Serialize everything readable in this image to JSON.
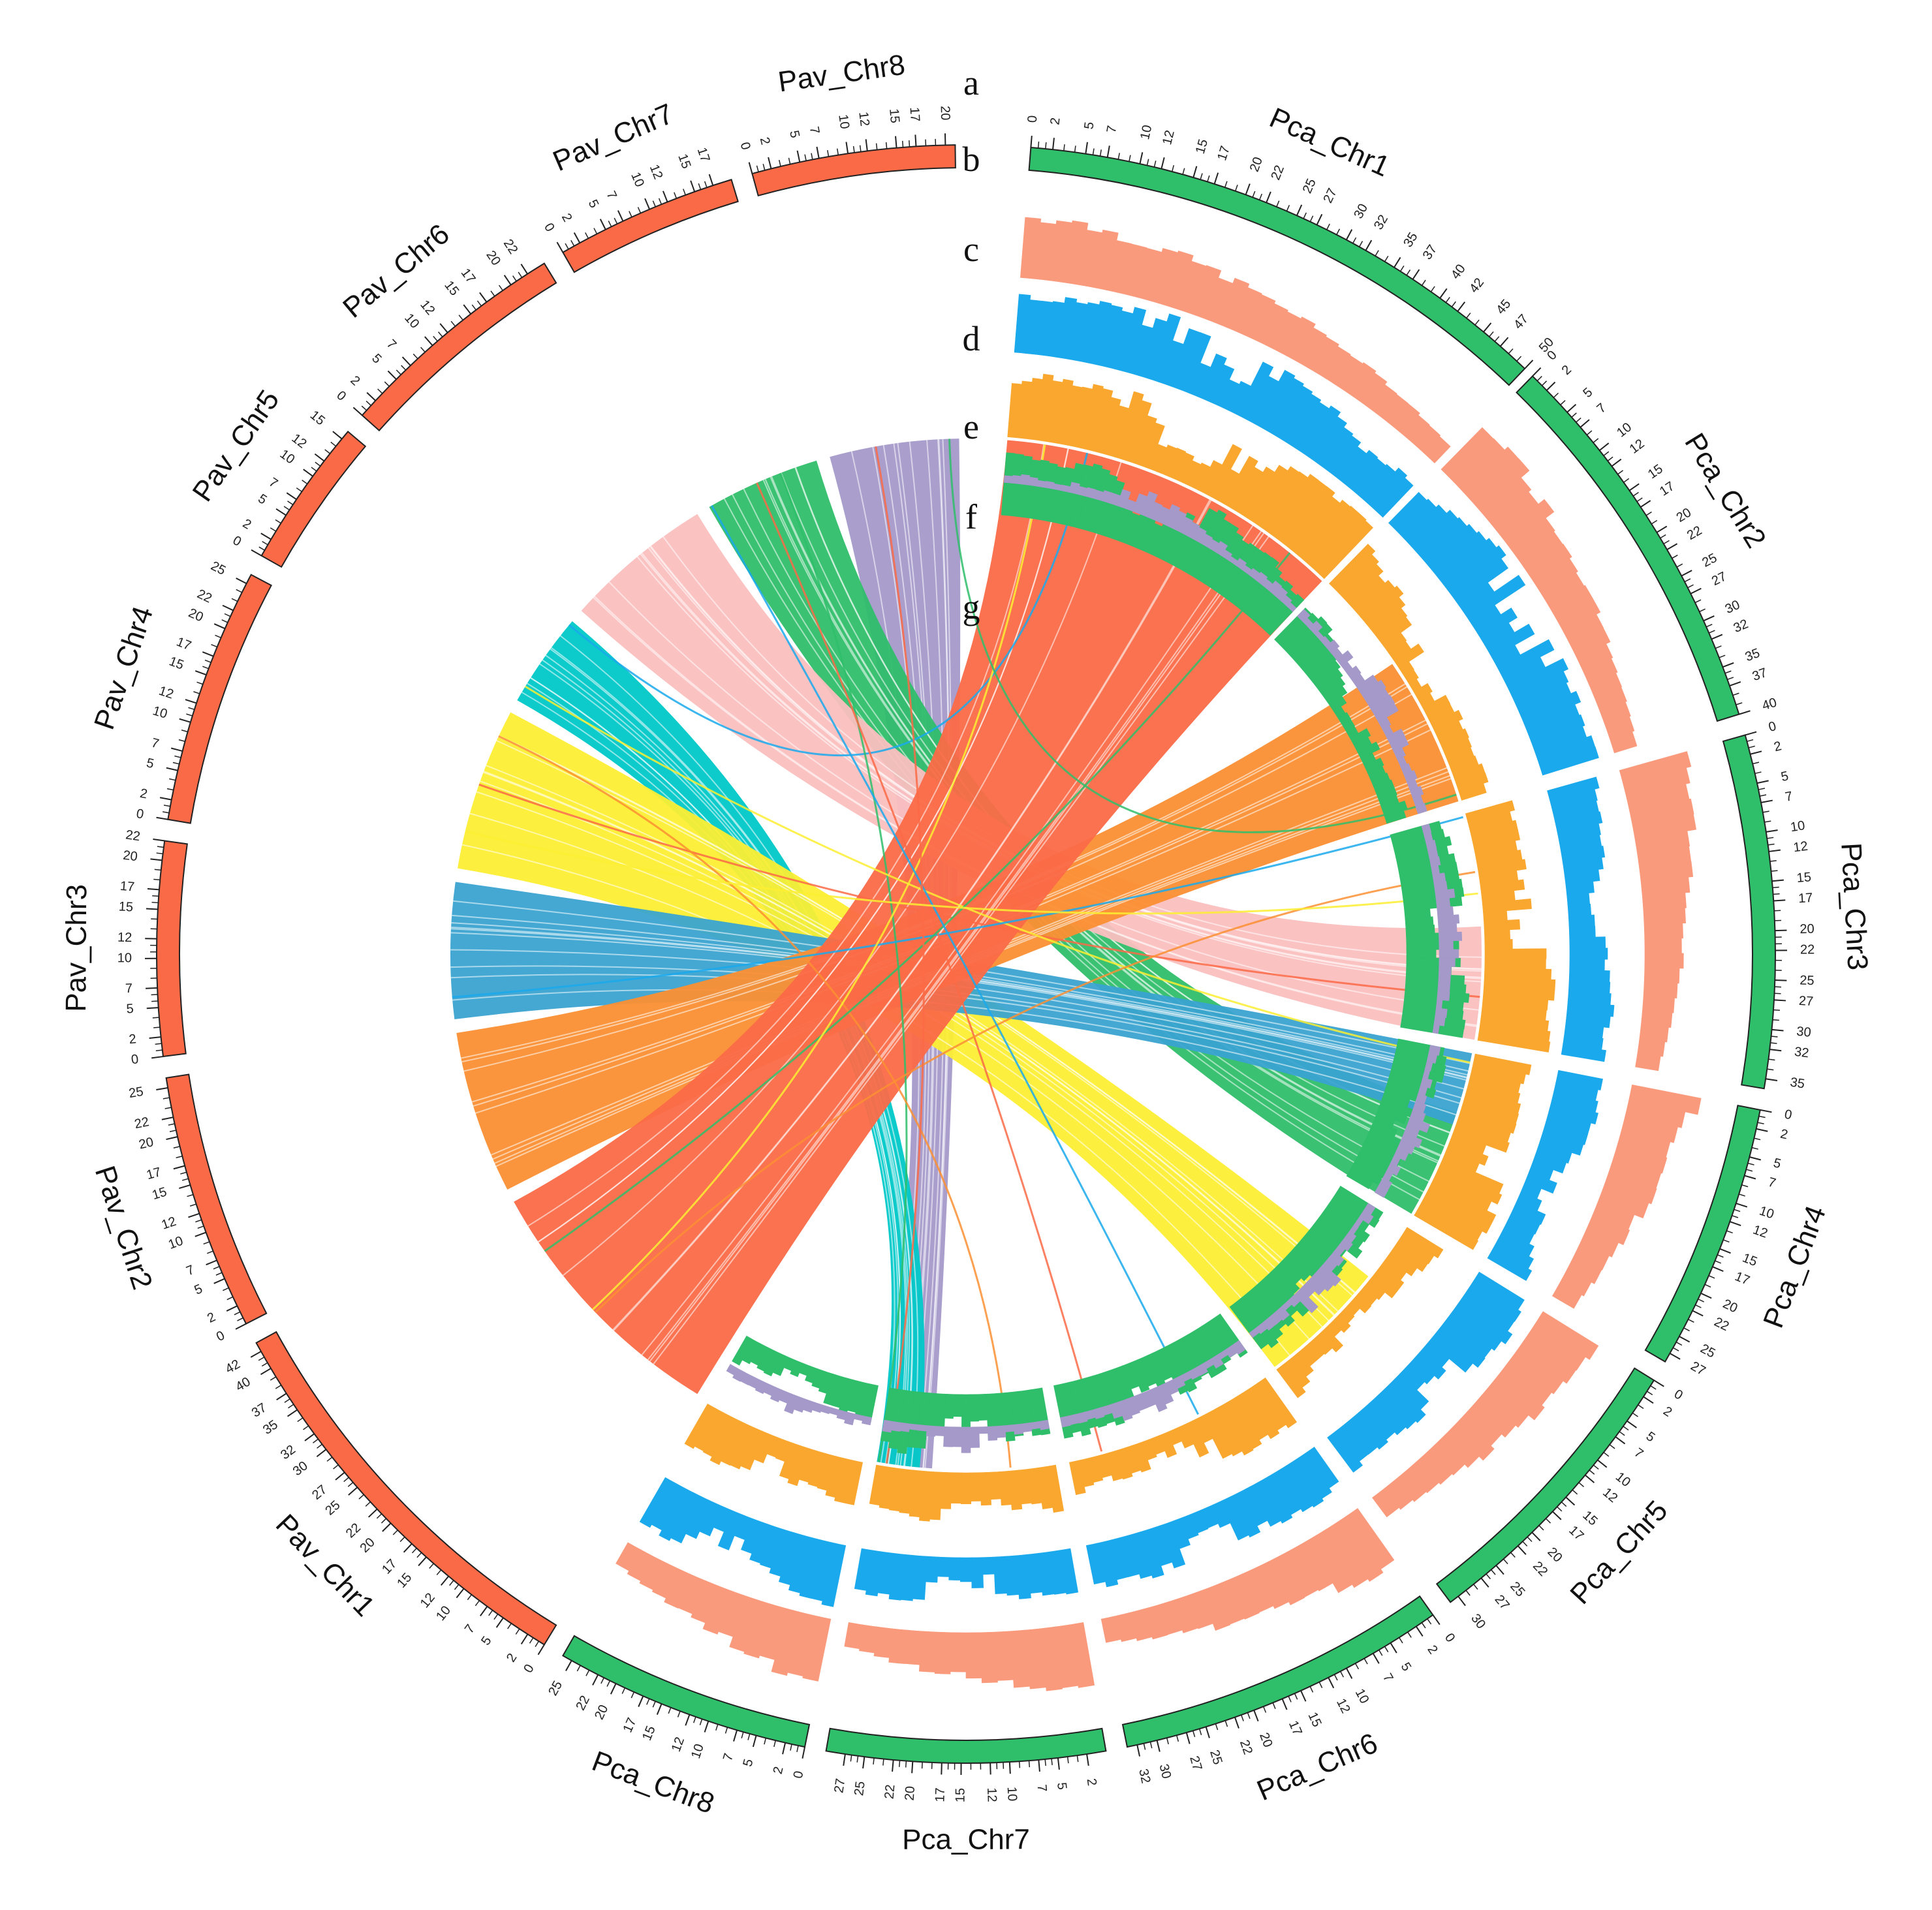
{
  "figure": {
    "track_letters": [
      "a",
      "b",
      "c",
      "d",
      "e",
      "f",
      "g"
    ]
  },
  "colors": {
    "pav_ideogram": "#fb6a47",
    "pca_ideogram": "#2fbe6a",
    "track_b": "#fa9a7c",
    "track_c": "#1aa9ec",
    "track_d": "#f9a72f",
    "track_e": "#2fbe6a",
    "track_f": "#a499c9"
  },
  "chart_data": {
    "type": "circos",
    "chromosomes": [
      {
        "id": "Pca_Chr1",
        "label": "Pca_Chr1",
        "genome": "Pca",
        "length": 50,
        "ticks": [
          "0",
          "2",
          "5",
          "7",
          "10",
          "12",
          "15",
          "17",
          "20",
          "22",
          "25",
          "27",
          "30",
          "32",
          "35",
          "37",
          "40",
          "42",
          "45",
          "47",
          "50"
        ]
      },
      {
        "id": "Pca_Chr2",
        "label": "Pca_Chr2",
        "genome": "Pca",
        "length": 40,
        "ticks": [
          "0",
          "2",
          "5",
          "7",
          "10",
          "12",
          "15",
          "17",
          "20",
          "22",
          "25",
          "27",
          "30",
          "32",
          "35",
          "37",
          "40"
        ]
      },
      {
        "id": "Pca_Chr3",
        "label": "Pca_Chr3",
        "genome": "Pca",
        "length": 36,
        "ticks": [
          "0",
          "2",
          "5",
          "7",
          "10",
          "12",
          "15",
          "17",
          "20",
          "22",
          "25",
          "27",
          "30",
          "32",
          "35"
        ]
      },
      {
        "id": "Pca_Chr4",
        "label": "Pca_Chr4",
        "genome": "Pca",
        "length": 28,
        "ticks": [
          "0",
          "2",
          "5",
          "7",
          "10",
          "12",
          "15",
          "17",
          "20",
          "22",
          "25",
          "27"
        ]
      },
      {
        "id": "Pca_Chr5",
        "label": "Pca_Chr5",
        "genome": "Pca",
        "length": 31,
        "ticks": [
          "0",
          "2",
          "5",
          "7",
          "10",
          "12",
          "15",
          "17",
          "20",
          "22",
          "25",
          "27",
          "30"
        ]
      },
      {
        "id": "Pca_Chr6",
        "label": "Pca_Chr6",
        "genome": "Pca",
        "length": 33,
        "ticks": [
          "0",
          "2",
          "5",
          "7",
          "10",
          "12",
          "15",
          "17",
          "20",
          "22",
          "25",
          "27",
          "30",
          "32"
        ]
      },
      {
        "id": "Pca_Chr7",
        "label": "Pca_Chr7",
        "genome": "Pca",
        "length": 29,
        "ticks": [
          "2",
          "5",
          "7",
          "10",
          "12",
          "15",
          "17",
          "20",
          "22",
          "25",
          "27"
        ]
      },
      {
        "id": "Pca_Chr8",
        "label": "Pca_Chr8",
        "genome": "Pca",
        "length": 26,
        "ticks": [
          "0",
          "2",
          "5",
          "7",
          "10",
          "12",
          "15",
          "17",
          "20",
          "22",
          "25"
        ]
      },
      {
        "id": "Pav_Chr1",
        "label": "Pav_Chr1",
        "genome": "Pav",
        "length": 43,
        "ticks": [
          "0",
          "2",
          "5",
          "7",
          "10",
          "12",
          "15",
          "17",
          "20",
          "22",
          "25",
          "27",
          "30",
          "32",
          "35",
          "37",
          "40",
          "42"
        ]
      },
      {
        "id": "Pav_Chr2",
        "label": "Pav_Chr2",
        "genome": "Pav",
        "length": 26,
        "ticks": [
          "0",
          "2",
          "5",
          "7",
          "10",
          "12",
          "15",
          "17",
          "20",
          "22",
          "25"
        ]
      },
      {
        "id": "Pav_Chr3",
        "label": "Pav_Chr3",
        "genome": "Pav",
        "length": 22,
        "ticks": [
          "0",
          "2",
          "5",
          "7",
          "10",
          "12",
          "15",
          "17",
          "20",
          "22"
        ]
      },
      {
        "id": "Pav_Chr4",
        "label": "Pav_Chr4",
        "genome": "Pav",
        "length": 26,
        "ticks": [
          "0",
          "2",
          "5",
          "7",
          "10",
          "12",
          "15",
          "17",
          "20",
          "22",
          "25"
        ]
      },
      {
        "id": "Pav_Chr5",
        "label": "Pav_Chr5",
        "genome": "Pav",
        "length": 16,
        "ticks": [
          "0",
          "2",
          "5",
          "7",
          "10",
          "12",
          "15"
        ]
      },
      {
        "id": "Pav_Chr6",
        "label": "Pav_Chr6",
        "genome": "Pav",
        "length": 24,
        "ticks": [
          "0",
          "2",
          "5",
          "7",
          "10",
          "12",
          "15",
          "17",
          "20",
          "22"
        ]
      },
      {
        "id": "Pav_Chr7",
        "label": "Pav_Chr7",
        "genome": "Pav",
        "length": 19,
        "ticks": [
          "0",
          "2",
          "5",
          "7",
          "10",
          "12",
          "15",
          "17"
        ]
      },
      {
        "id": "Pav_Chr8",
        "label": "Pav_Chr8",
        "genome": "Pav",
        "length": 21,
        "ticks": [
          "0",
          "2",
          "5",
          "7",
          "10",
          "12",
          "15",
          "17",
          "20"
        ]
      }
    ],
    "tracks": [
      {
        "id": "a",
        "kind": "ideogram"
      },
      {
        "id": "b",
        "kind": "histogram"
      },
      {
        "id": "c",
        "kind": "histogram"
      },
      {
        "id": "d",
        "kind": "histogram"
      },
      {
        "id": "e",
        "kind": "histogram"
      },
      {
        "id": "f",
        "kind": "histogram"
      },
      {
        "id": "g",
        "kind": "synteny"
      }
    ],
    "links": [
      {
        "pav": "Pav_Chr8",
        "pav_range": [
          0,
          21
        ],
        "pca": "Pca_Chr7",
        "pca_range": [
          20,
          29
        ],
        "color": "#a499c9"
      },
      {
        "pav": "Pav_Chr7",
        "pav_range": [
          0,
          19
        ],
        "pca": "Pca_Chr4",
        "pca_range": [
          10,
          28
        ],
        "color": "#2fbe6a"
      },
      {
        "pav": "Pav_Chr6",
        "pav_range": [
          0,
          24
        ],
        "pca": "Pca_Chr3",
        "pca_range": [
          18,
          36
        ],
        "color": "#fbbfbf"
      },
      {
        "pav": "Pav_Chr5",
        "pav_range": [
          0,
          16
        ],
        "pca": "Pca_Chr7",
        "pca_range": [
          22,
          29
        ],
        "color": "#00c8c8"
      },
      {
        "pav": "Pav_Chr4",
        "pav_range": [
          0,
          26
        ],
        "pca": "Pca_Chr5",
        "pca_range": [
          10,
          31
        ],
        "color": "#fcee33"
      },
      {
        "pav": "Pav_Chr3",
        "pav_range": [
          0,
          22
        ],
        "pca": "Pca_Chr4",
        "pca_range": [
          0,
          12
        ],
        "color": "#3aa3d1"
      },
      {
        "pav": "Pav_Chr2",
        "pav_range": [
          0,
          26
        ],
        "pca": "Pca_Chr2",
        "pca_range": [
          16,
          40
        ],
        "color": "#fb8f33"
      },
      {
        "pav": "Pav_Chr1",
        "pav_range": [
          0,
          43
        ],
        "pca": "Pca_Chr1",
        "pca_range": [
          0,
          50
        ],
        "color": "#fb6a47"
      }
    ]
  }
}
